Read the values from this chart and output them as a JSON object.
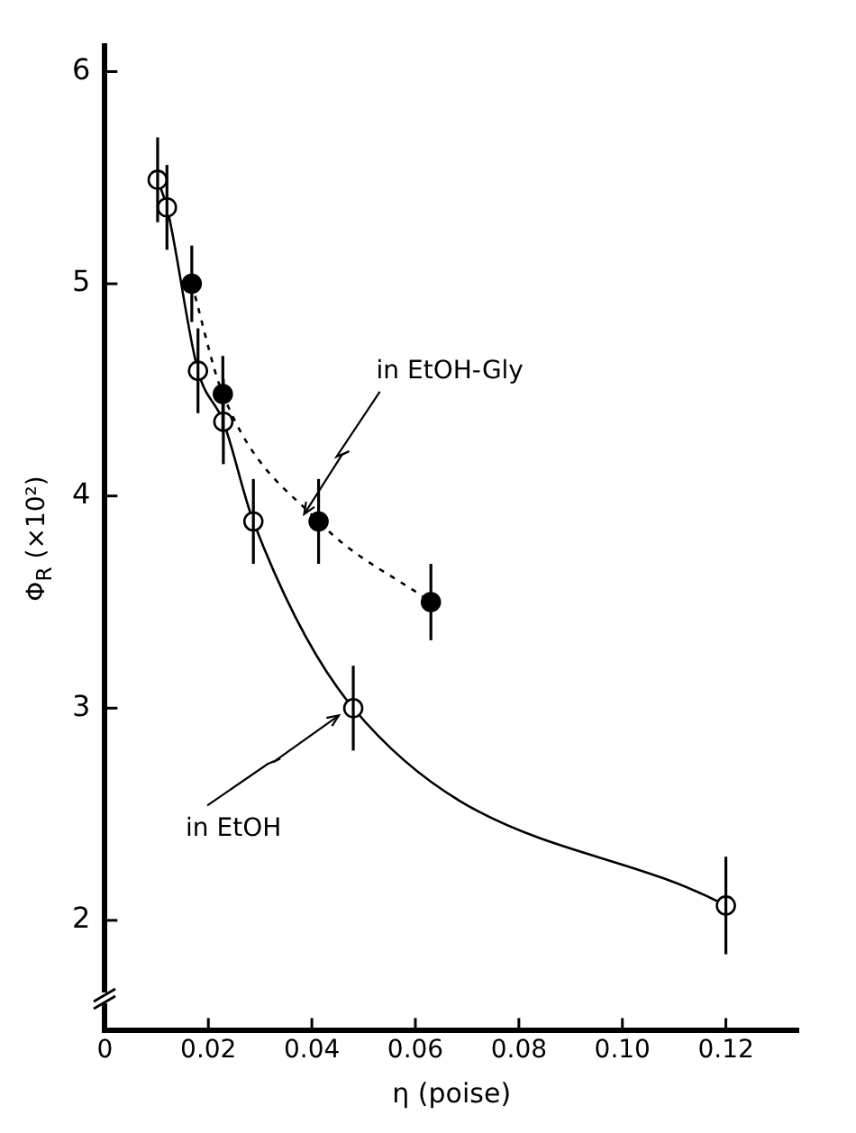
{
  "chart_data": {
    "type": "line",
    "xlabel": "η (poise)",
    "ylabel": "Φ$_{R}$ (×10²)",
    "series": [
      {
        "name": "in EtOH",
        "color": "#000000",
        "marker": "circle",
        "line_style": "solid",
        "x": [
          0.0102,
          0.012,
          0.018,
          0.0229,
          0.0287,
          0.048,
          0.12
        ],
        "values": [
          5.49,
          5.36,
          4.59,
          4.35,
          3.88,
          3.0,
          2.07
        ],
        "errors": [
          0.2,
          0.2,
          0.2,
          0.2,
          0.2,
          0.2,
          0.23
        ]
      },
      {
        "name": "in EtOH-Gly",
        "color": "#000000",
        "marker": "circle",
        "line_style": "dotted",
        "x": [
          0.0168,
          0.0228,
          0.0413,
          0.063
        ],
        "values": [
          5.0,
          4.48,
          3.88,
          3.5
        ],
        "errors": [
          0.18,
          0.18,
          0.2,
          0.18
        ]
      }
    ],
    "xlim": [
      0,
      0.134
    ],
    "xticks": [
      0,
      {
        "value": 0.02,
        "label": "0.02"
      },
      {
        "value": 0.04,
        "label": "0.04"
      },
      {
        "value": 0.06,
        "label": "0.06"
      },
      {
        "value": 0.08,
        "label": "0.08"
      },
      {
        "value": 0.1,
        "label": "0.10"
      },
      {
        "value": 0.12,
        "label": "0.12"
      }
    ],
    "ylim": [
      1.48,
      6.12
    ],
    "yticks": [
      2,
      3,
      4,
      5,
      6
    ],
    "grid": false,
    "legend": false
  }
}
